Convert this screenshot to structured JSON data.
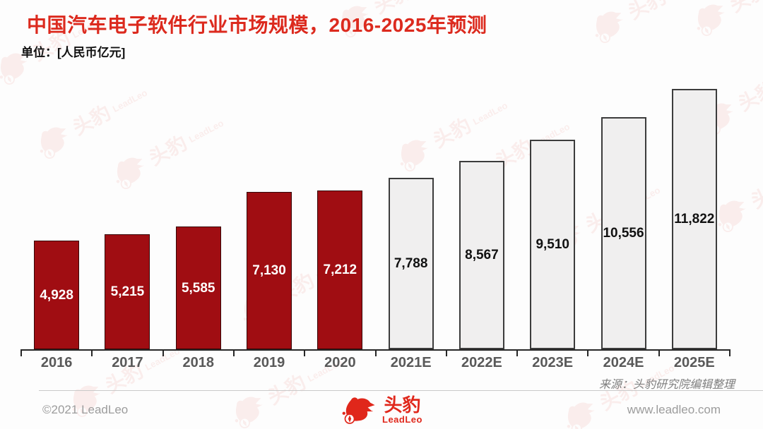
{
  "header": {
    "title": "中国汽车电子软件行业市场规模，2016-2025年预测",
    "unit": "单位：[人民币亿元]"
  },
  "chart_data": {
    "type": "bar",
    "title": "中国汽车电子软件行业市场规模，2016-2025年预测",
    "unit_label": "单位：[人民币亿元]",
    "categories": [
      "2016",
      "2017",
      "2018",
      "2019",
      "2020",
      "2021E",
      "2022E",
      "2023E",
      "2024E",
      "2025E"
    ],
    "values": [
      4928,
      5215,
      5585,
      7130,
      7212,
      7788,
      8567,
      9510,
      10556,
      11822
    ],
    "value_labels": [
      "4,928",
      "5,215",
      "5,585",
      "7,130",
      "7,212",
      "7,788",
      "8,567",
      "9,510",
      "10,556",
      "11,822"
    ],
    "actual_categories": [
      "2016",
      "2017",
      "2018",
      "2019",
      "2020"
    ],
    "forecast_categories": [
      "2021E",
      "2022E",
      "2023E",
      "2024E",
      "2025E"
    ],
    "ylim": [
      0,
      12000
    ],
    "grid": false,
    "legend": "none",
    "colors": {
      "actual_fill": "#A00D12",
      "forecast_fill": "#F0EFEF",
      "forecast_border": "#3C3C3C",
      "actual_value_text": "#FFFFFF",
      "forecast_value_text": "#111111"
    }
  },
  "source": "来源：头豹研究院编辑整理",
  "footer": {
    "copyright": "©2021 LeadLeo",
    "website": "www.leadleo.com",
    "logo": {
      "cn": "头豹",
      "en": "LeadLeo"
    }
  },
  "theme": {
    "title_color": "#DC2A1E",
    "axis_label_color": "#595959",
    "footer_text_color": "#9C9C9C",
    "brand_red": "#E0271B"
  }
}
